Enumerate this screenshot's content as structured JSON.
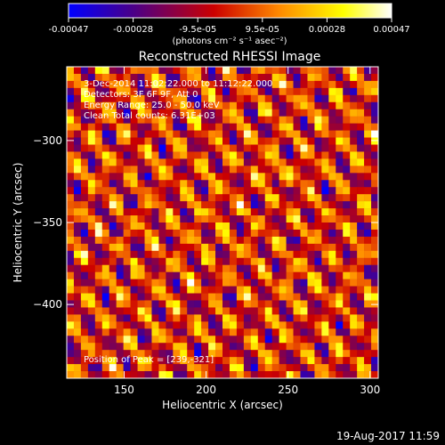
{
  "chart_data": {
    "type": "heatmap",
    "title": "Reconstructed RHESSI Image",
    "xlabel": "Heliocentric X (arcsec)",
    "ylabel": "Heliocentric Y (arcsec)",
    "xlim": [
      115,
      305
    ],
    "ylim": [
      -445,
      -255
    ],
    "x_ticks": [
      150,
      200,
      250,
      300
    ],
    "y_ticks": [
      -300,
      -350,
      -400
    ],
    "colorbar": {
      "colormap": [
        "#0000ff",
        "#4a0088",
        "#cc0000",
        "#ff8800",
        "#ffff00",
        "#ffffff"
      ],
      "range": [
        -0.00047,
        0.00047
      ],
      "tick_labels": [
        "-0.00047",
        "-0.00028",
        "-9.5e-05",
        "9.5e-05",
        "0.00028",
        "0.00047"
      ],
      "unit_label": "(photons cm⁻² s⁻¹ asec⁻²)"
    },
    "annotations": [
      "3-Dec-2014 11:02:22.000 to 11:12:22.000",
      "Detectors: 3F 6F 9F, Att 0",
      "Energy Range: 25.0 - 50.0 keV",
      "Clean   Total counts: 6.31E+03"
    ],
    "peak_label": "Position of Peak = [239,-321]",
    "peak": [
      239,
      -321
    ],
    "grid": false,
    "legend": "none"
  },
  "footer": {
    "date": "19-Aug-2017 11:59"
  }
}
